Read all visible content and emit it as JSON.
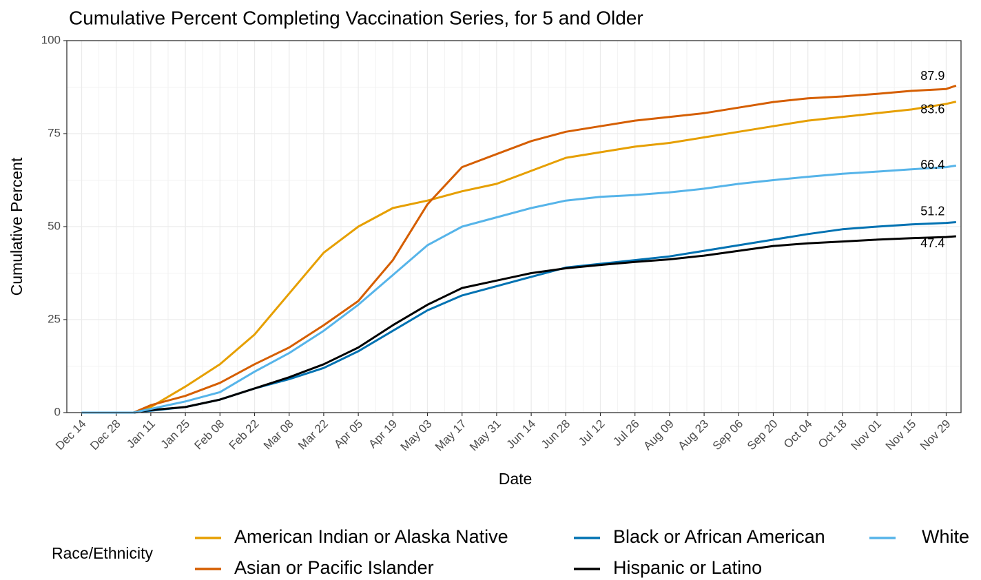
{
  "chart_data": {
    "type": "line",
    "title": "Cumulative Percent Completing Vaccination Series, for 5 and Older",
    "x_label": "Date",
    "y_label": "Cumulative Percent",
    "legend_title": "Race/Ethnicity",
    "x": [
      0,
      14,
      21,
      28,
      42,
      56,
      70,
      84,
      98,
      112,
      126,
      140,
      154,
      168,
      182,
      196,
      210,
      224,
      238,
      252,
      266,
      280,
      294,
      308,
      322,
      336,
      350,
      354
    ],
    "series": [
      {
        "name": "American Indian or Alaska Native",
        "color": "#E69F00",
        "values": [
          0,
          0,
          0,
          1.5,
          7,
          13,
          21,
          32,
          43,
          50,
          55,
          57,
          59.5,
          61.5,
          65,
          68.5,
          70,
          71.5,
          72.5,
          74,
          75.5,
          77,
          78.5,
          79.5,
          80.5,
          81.5,
          83,
          83.6
        ]
      },
      {
        "name": "Asian or Pacific Islander",
        "color": "#D55E00",
        "values": [
          0,
          0,
          0,
          2,
          4.5,
          8,
          13,
          17.5,
          23.5,
          30,
          41,
          56,
          66,
          69.5,
          73,
          75.5,
          77,
          78.5,
          79.5,
          80.5,
          82,
          83.5,
          84.5,
          85,
          85.7,
          86.5,
          87,
          87.9
        ]
      },
      {
        "name": "Black or African American",
        "color": "#0072B2",
        "values": [
          0,
          0,
          0,
          0.5,
          1.5,
          3.5,
          6.5,
          9,
          12,
          16.5,
          22,
          27.5,
          31.5,
          34,
          36.5,
          39,
          40,
          41,
          42,
          43.5,
          45,
          46.5,
          48,
          49.3,
          50,
          50.6,
          51,
          51.2
        ]
      },
      {
        "name": "Hispanic or Latino",
        "color": "#000000",
        "values": [
          0,
          0,
          0,
          0.7,
          1.5,
          3.5,
          6.5,
          9.5,
          13,
          17.5,
          23.5,
          29,
          33.5,
          35.5,
          37.5,
          38.8,
          39.7,
          40.5,
          41.2,
          42.2,
          43.5,
          44.8,
          45.5,
          46,
          46.5,
          46.9,
          47.2,
          47.4
        ]
      },
      {
        "name": "White",
        "color": "#56B4E9",
        "values": [
          0,
          0,
          0,
          1,
          3,
          5.5,
          11,
          16,
          22,
          29,
          37,
          45,
          50,
          52.5,
          55,
          57,
          58,
          58.5,
          59.2,
          60.2,
          61.5,
          62.5,
          63.4,
          64.2,
          64.8,
          65.4,
          66,
          66.4
        ]
      }
    ],
    "xlim": [
      -6,
      356
    ],
    "xticks": [
      {
        "value": 0,
        "label": "Dec 14"
      },
      {
        "value": 14,
        "label": "Dec 28"
      },
      {
        "value": 28,
        "label": "Jan 11"
      },
      {
        "value": 42,
        "label": "Jan 25"
      },
      {
        "value": 56,
        "label": "Feb 08"
      },
      {
        "value": 70,
        "label": "Feb 22"
      },
      {
        "value": 84,
        "label": "Mar 08"
      },
      {
        "value": 98,
        "label": "Mar 22"
      },
      {
        "value": 112,
        "label": "Apr 05"
      },
      {
        "value": 126,
        "label": "Apr 19"
      },
      {
        "value": 140,
        "label": "May 03"
      },
      {
        "value": 154,
        "label": "May 17"
      },
      {
        "value": 168,
        "label": "May 31"
      },
      {
        "value": 182,
        "label": "Jun 14"
      },
      {
        "value": 196,
        "label": "Jun 28"
      },
      {
        "value": 210,
        "label": "Jul 12"
      },
      {
        "value": 224,
        "label": "Jul 26"
      },
      {
        "value": 238,
        "label": "Aug 09"
      },
      {
        "value": 252,
        "label": "Aug 23"
      },
      {
        "value": 266,
        "label": "Sep 06"
      },
      {
        "value": 280,
        "label": "Sep 20"
      },
      {
        "value": 294,
        "label": "Oct 04"
      },
      {
        "value": 308,
        "label": "Oct 18"
      },
      {
        "value": 322,
        "label": "Nov 01"
      },
      {
        "value": 336,
        "label": "Nov 15"
      },
      {
        "value": 350,
        "label": "Nov 29"
      }
    ],
    "ylim": [
      0,
      100
    ],
    "yticks": [
      0,
      25,
      50,
      75,
      100
    ],
    "grid": true,
    "legend": "bottom"
  }
}
